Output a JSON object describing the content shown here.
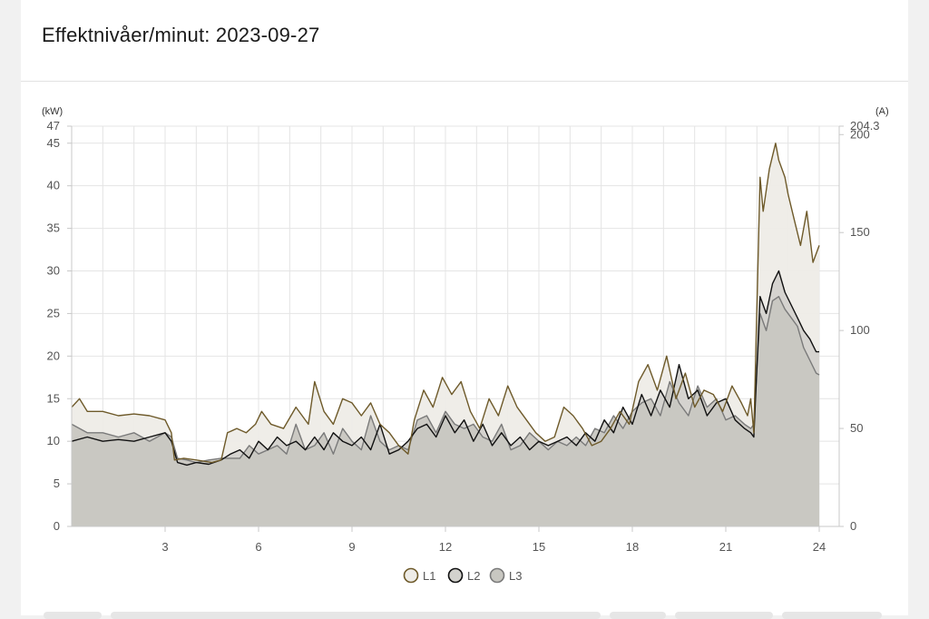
{
  "header": {
    "title": "Effektnivåer/minut: 2023-09-27"
  },
  "chart_data": {
    "type": "area",
    "title": "Effektnivåer/minut: 2023-09-27",
    "y_unit_left": "(kW)",
    "y_unit_right": "(A)",
    "xlim": [
      0.0,
      24.0
    ],
    "ylim_left": [
      0,
      47
    ],
    "ylim_right": [
      0,
      204.3
    ],
    "x_ticks": [
      "3",
      "6",
      "9",
      "12",
      "15",
      "18",
      "21",
      "24"
    ],
    "x_tick_values": [
      3,
      6,
      9,
      12,
      15,
      18,
      21,
      24
    ],
    "y_ticks_left": [
      "0",
      "5",
      "10",
      "15",
      "20",
      "25",
      "30",
      "35",
      "40",
      "45",
      "47"
    ],
    "y_ticks_left_values": [
      0,
      5,
      10,
      15,
      20,
      25,
      30,
      35,
      40,
      45,
      47
    ],
    "y_ticks_right": [
      "0",
      "50",
      "100",
      "150",
      "200",
      "204.3"
    ],
    "y_ticks_right_values": [
      0,
      50,
      100,
      150,
      200,
      204.3
    ],
    "grid": true,
    "legend_position": "bottom-center",
    "series": [
      {
        "name": "L1",
        "line_color": "#6e5a2a",
        "fill_color": "#eeece7",
        "x": [
          0.0,
          0.25,
          0.5,
          1.0,
          1.5,
          2.0,
          2.5,
          3.0,
          3.2,
          3.3,
          3.6,
          4.0,
          4.5,
          4.8,
          5.0,
          5.3,
          5.6,
          5.9,
          6.1,
          6.4,
          6.8,
          7.2,
          7.6,
          7.8,
          8.1,
          8.4,
          8.7,
          9.0,
          9.3,
          9.6,
          9.9,
          10.2,
          10.5,
          10.8,
          11.0,
          11.3,
          11.6,
          11.9,
          12.2,
          12.5,
          12.8,
          13.1,
          13.4,
          13.7,
          14.0,
          14.3,
          14.6,
          14.9,
          15.2,
          15.5,
          15.8,
          16.1,
          16.4,
          16.7,
          17.0,
          17.3,
          17.6,
          17.9,
          18.2,
          18.5,
          18.8,
          19.1,
          19.4,
          19.7,
          20.0,
          20.3,
          20.6,
          20.9,
          21.2,
          21.5,
          21.7,
          21.8,
          21.9,
          22.1,
          22.2,
          22.4,
          22.6,
          22.7,
          22.9,
          23.0,
          23.2,
          23.4,
          23.6,
          23.8,
          24.0
        ],
        "y": [
          14.0,
          15.0,
          13.5,
          13.5,
          13.0,
          13.2,
          13.0,
          12.5,
          11.0,
          7.8,
          8.0,
          7.8,
          7.5,
          7.8,
          11.0,
          11.5,
          11.0,
          12.0,
          13.5,
          12.0,
          11.5,
          14.0,
          12.0,
          17.0,
          13.5,
          12.0,
          15.0,
          14.5,
          13.0,
          14.5,
          12.0,
          11.0,
          9.5,
          8.5,
          12.5,
          16.0,
          14.0,
          17.5,
          15.5,
          17.0,
          13.5,
          11.5,
          15.0,
          13.0,
          16.5,
          14.0,
          12.5,
          11.0,
          10.0,
          10.5,
          14.0,
          13.0,
          11.5,
          9.5,
          10.0,
          11.5,
          13.5,
          12.0,
          17.0,
          19.0,
          16.0,
          20.0,
          15.0,
          18.0,
          14.0,
          16.0,
          15.5,
          13.5,
          16.5,
          14.5,
          13.0,
          15.0,
          11.0,
          41.0,
          37.0,
          42.0,
          45.0,
          43.0,
          41.0,
          39.0,
          36.0,
          33.0,
          37.0,
          31.0,
          33.0
        ]
      },
      {
        "name": "L2",
        "line_color": "#111111",
        "fill_color": "#d3d2cd",
        "x": [
          0.0,
          0.5,
          1.0,
          1.5,
          2.0,
          2.5,
          3.0,
          3.2,
          3.4,
          3.7,
          4.0,
          4.4,
          4.8,
          5.1,
          5.4,
          5.7,
          6.0,
          6.3,
          6.6,
          6.9,
          7.2,
          7.5,
          7.8,
          8.1,
          8.4,
          8.7,
          9.0,
          9.3,
          9.6,
          9.9,
          10.2,
          10.5,
          10.8,
          11.1,
          11.4,
          11.7,
          12.0,
          12.3,
          12.6,
          12.9,
          13.2,
          13.5,
          13.8,
          14.1,
          14.4,
          14.7,
          15.0,
          15.3,
          15.6,
          15.9,
          16.2,
          16.5,
          16.8,
          17.1,
          17.4,
          17.7,
          18.0,
          18.3,
          18.6,
          18.9,
          19.2,
          19.5,
          19.8,
          20.1,
          20.4,
          20.7,
          21.0,
          21.3,
          21.6,
          21.8,
          21.9,
          22.1,
          22.3,
          22.5,
          22.7,
          22.9,
          23.1,
          23.3,
          23.5,
          23.7,
          23.9,
          24.0
        ],
        "y": [
          10.0,
          10.5,
          10.0,
          10.2,
          10.0,
          10.5,
          11.0,
          10.0,
          7.5,
          7.2,
          7.5,
          7.3,
          7.8,
          8.5,
          9.0,
          8.0,
          10.0,
          9.0,
          10.5,
          9.5,
          10.0,
          9.0,
          10.5,
          9.0,
          11.0,
          10.0,
          9.5,
          10.5,
          9.0,
          12.0,
          8.5,
          9.0,
          10.0,
          11.5,
          12.0,
          10.5,
          13.0,
          11.0,
          12.5,
          10.0,
          12.0,
          9.5,
          11.0,
          9.5,
          10.5,
          9.0,
          10.0,
          9.5,
          10.0,
          10.5,
          9.5,
          11.0,
          10.0,
          12.5,
          11.0,
          14.0,
          12.0,
          15.5,
          13.0,
          16.0,
          14.0,
          19.0,
          15.0,
          16.0,
          13.0,
          14.5,
          15.0,
          12.5,
          11.5,
          11.0,
          10.5,
          27.0,
          25.0,
          28.5,
          30.0,
          27.5,
          26.0,
          24.5,
          23.0,
          22.0,
          20.5,
          20.5
        ]
      },
      {
        "name": "L3",
        "line_color": "#7a7a7a",
        "fill_color": "#c8c7c1",
        "x": [
          0.0,
          0.5,
          1.0,
          1.5,
          2.0,
          2.5,
          3.0,
          3.2,
          3.4,
          3.7,
          4.0,
          4.4,
          4.8,
          5.1,
          5.4,
          5.7,
          6.0,
          6.3,
          6.6,
          6.9,
          7.2,
          7.5,
          7.8,
          8.1,
          8.4,
          8.7,
          9.0,
          9.3,
          9.6,
          9.9,
          10.2,
          10.5,
          10.8,
          11.1,
          11.4,
          11.7,
          12.0,
          12.3,
          12.6,
          12.9,
          13.2,
          13.5,
          13.8,
          14.1,
          14.4,
          14.7,
          15.0,
          15.3,
          15.6,
          15.9,
          16.2,
          16.5,
          16.8,
          17.1,
          17.4,
          17.7,
          18.0,
          18.3,
          18.6,
          18.9,
          19.2,
          19.5,
          19.8,
          20.1,
          20.4,
          20.7,
          21.0,
          21.3,
          21.6,
          21.8,
          21.9,
          22.1,
          22.3,
          22.5,
          22.7,
          22.9,
          23.1,
          23.3,
          23.5,
          23.7,
          23.9,
          24.0
        ],
        "y": [
          12.0,
          11.0,
          11.0,
          10.5,
          11.0,
          10.0,
          11.0,
          10.5,
          8.0,
          7.8,
          7.5,
          7.8,
          8.0,
          8.0,
          8.0,
          9.5,
          8.5,
          9.0,
          9.5,
          8.5,
          12.0,
          9.0,
          9.5,
          11.0,
          8.5,
          11.5,
          10.0,
          9.0,
          13.0,
          10.0,
          9.0,
          9.5,
          9.0,
          12.5,
          13.0,
          11.0,
          13.5,
          12.0,
          11.5,
          12.0,
          10.5,
          10.0,
          12.0,
          9.0,
          9.5,
          11.0,
          10.0,
          9.0,
          10.0,
          9.5,
          10.5,
          9.5,
          11.5,
          11.0,
          13.0,
          11.5,
          13.5,
          14.5,
          15.0,
          13.0,
          17.0,
          14.5,
          13.0,
          16.5,
          14.0,
          15.0,
          12.5,
          13.0,
          12.0,
          11.5,
          12.0,
          25.0,
          23.0,
          26.5,
          27.0,
          25.5,
          24.5,
          23.5,
          21.0,
          19.5,
          18.0,
          17.8
        ]
      }
    ]
  }
}
